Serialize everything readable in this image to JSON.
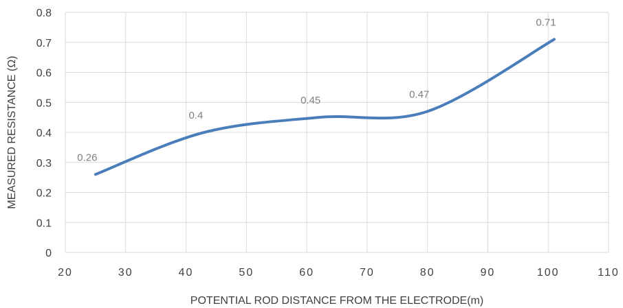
{
  "chart_data": {
    "type": "line",
    "title": "",
    "xlabel": "POTENTIAL ROD DISTANCE FROM THE ELECTRODE(m)",
    "ylabel": "MEASURED RESISTANCE (Ω)",
    "xlim": [
      20,
      110
    ],
    "ylim": [
      0,
      0.8
    ],
    "xticks": [
      "20",
      "30",
      "40",
      "50",
      "60",
      "70",
      "80",
      "90",
      "100",
      "110"
    ],
    "yticks": [
      "0",
      "0.1",
      "0.2",
      "0.3",
      "0.4",
      "0.5",
      "0.6",
      "0.7",
      "0.8"
    ],
    "grid": true,
    "smooth": true,
    "line_color": "#4a7ebb",
    "series": [
      {
        "x": [
          25,
          43,
          62,
          80,
          101
        ],
        "values": [
          0.26,
          0.4,
          0.45,
          0.47,
          0.71
        ],
        "labels": [
          "0.26",
          "0.4",
          "0.45",
          "0.47",
          "0.71"
        ]
      }
    ]
  }
}
